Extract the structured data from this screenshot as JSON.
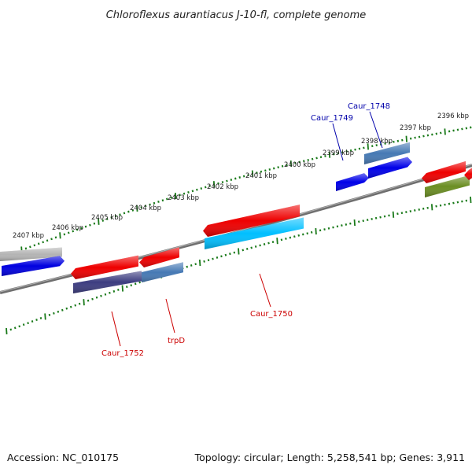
{
  "title": "Chloroflexus aurantiacus J-10-fl, complete genome",
  "accession": "Accession: NC_010175",
  "summary": "Topology: circular; Length: 5,258,541 bp; Genes: 3,911",
  "colors": {
    "tick": "#1a7a1a",
    "backbone": "#7a7a7a",
    "label_red": "#cc0000",
    "label_blue": "#0000aa"
  },
  "ruler_labels": [
    "2407 kbp",
    "2406 kbp",
    "2405 kbp",
    "2404 kbp",
    "2403 kbp",
    "2402 kbp",
    "2401 kbp",
    "2400 kbp",
    "2399 kbp",
    "2398 kbp",
    "2397 kbp",
    "2396 kbp"
  ],
  "gene_labels": [
    {
      "name": "Caur_1748",
      "color": "#0000aa"
    },
    {
      "name": "Caur_1749",
      "color": "#0000aa"
    },
    {
      "name": "Caur_1750",
      "color": "#cc0000"
    },
    {
      "name": "trpD",
      "color": "#cc0000"
    },
    {
      "name": "Caur_1752",
      "color": "#cc0000"
    }
  ]
}
